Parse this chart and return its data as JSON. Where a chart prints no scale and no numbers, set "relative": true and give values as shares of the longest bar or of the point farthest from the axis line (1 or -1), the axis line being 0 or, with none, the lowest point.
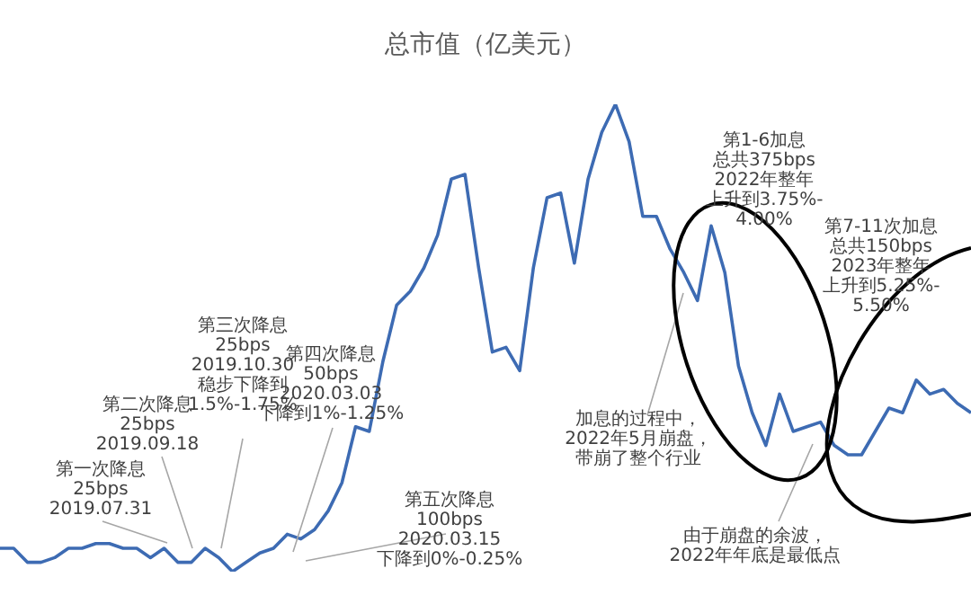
{
  "chart_data": {
    "type": "line",
    "title": "总市值（亿美元）",
    "relative": true,
    "legend": false,
    "marker": "none",
    "categories": [
      null,
      null,
      null,
      null,
      null,
      null,
      null,
      null,
      null,
      null,
      null,
      null,
      null,
      null,
      null,
      null,
      null,
      null,
      null,
      null,
      null,
      null,
      null,
      null,
      null,
      null,
      null,
      null,
      null,
      null,
      null,
      null,
      null,
      null,
      null,
      null,
      null,
      null,
      null,
      null,
      null,
      null,
      null,
      null,
      null,
      null,
      null,
      null,
      null,
      null,
      null,
      null,
      null,
      null,
      null,
      null,
      null,
      null,
      null,
      null,
      null,
      null,
      null,
      null,
      null,
      null,
      null,
      null,
      null,
      null,
      null,
      null
    ],
    "series": [
      {
        "color": "#3d6bb3",
        "values": [
          0.05,
          0.05,
          0.02,
          0.02,
          0.03,
          0.05,
          0.05,
          0.06,
          0.06,
          0.05,
          0.05,
          0.03,
          0.05,
          0.02,
          0.02,
          0.05,
          0.03,
          0,
          0.02,
          0.04,
          0.05,
          0.08,
          0.07,
          0.09,
          0.13,
          0.19,
          0.31,
          0.3,
          0.45,
          0.57,
          0.6,
          0.65,
          0.72,
          0.84,
          0.85,
          0.65,
          0.47,
          0.48,
          0.43,
          0.65,
          0.8,
          0.81,
          0.66,
          0.84,
          0.94,
          1,
          0.92,
          0.76,
          0.76,
          0.69,
          0.64,
          0.58,
          0.74,
          0.64,
          0.44,
          0.34,
          0.27,
          0.38,
          0.3,
          0.31,
          0.32,
          0.27,
          0.25,
          0.25,
          0.3,
          0.35,
          0.34,
          0.41,
          0.38,
          0.39,
          0.36,
          0.34
        ]
      }
    ],
    "annotations": [
      "第一次降息\n25bps\n2019.07.31",
      "第二次降息\n25bps\n2019.09.18",
      "第三次降息\n25bps\n2019.10.30\n稳步下降到\n1.5%-1.75%",
      "第四次降息\n50bps\n2020.03.03\n下降到1%-1.25%",
      "第五次降息\n100bps\n2020.03.15\n下降到0%-0.25%",
      "加息的过程中，\n2022年5月崩盘，带崩了整个行业",
      "由于崩盘的余波，\n2022年年底是最低点",
      "第1-6加息总共375bps\n2022年整年上升到3.75%-\n4.00%",
      "第7-11次加息总共150bps\n2023年整年上升到5.25%-\n5.50%"
    ]
  }
}
